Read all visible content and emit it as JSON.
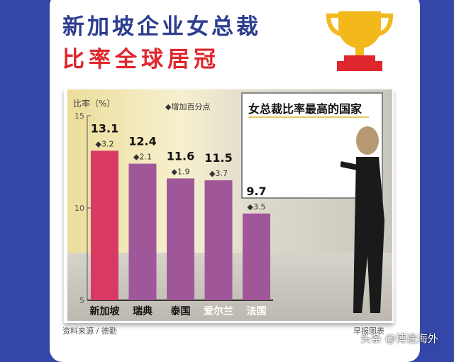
{
  "title_line1": "新加坡企业女总裁",
  "title_line2": "比率全球居冠",
  "board_title": "女总裁比率最高的国家",
  "source": "资料来源 / 德勤",
  "credit": "早报图表",
  "watermark": "头条 @博途海外",
  "chart_data": {
    "type": "bar",
    "ylabel": "比率（%）",
    "legend": "◆增加百分点",
    "ylim": [
      5,
      15
    ],
    "yticks": [
      5,
      10,
      15
    ],
    "categories": [
      "新加坡",
      "瑞典",
      "泰国",
      "爱尔兰",
      "法国"
    ],
    "values": [
      13.1,
      12.4,
      11.6,
      11.5,
      9.7
    ],
    "increase": [
      3.2,
      2.1,
      1.9,
      3.7,
      3.5
    ],
    "colors": [
      "#d83a63",
      "#a0579a",
      "#a0579a",
      "#a0579a",
      "#a0579a"
    ],
    "category_label_colors": [
      "#111111",
      "#111111",
      "#111111",
      "#ffffff",
      "#ffffff"
    ]
  }
}
